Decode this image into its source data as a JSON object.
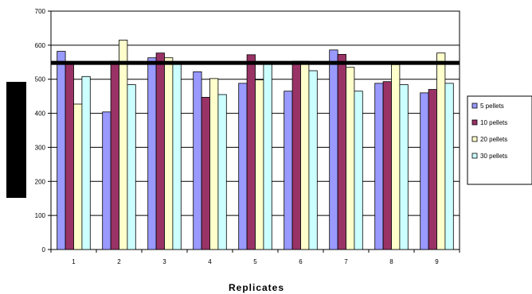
{
  "chart_data": {
    "type": "bar",
    "xlabel": "Replicates",
    "ylabel": "",
    "ylim": [
      0,
      700
    ],
    "yticks": [
      0,
      100,
      200,
      300,
      400,
      500,
      600,
      700
    ],
    "categories": [
      "1",
      "2",
      "3",
      "4",
      "5",
      "6",
      "7",
      "8",
      "9"
    ],
    "reference_line": 548,
    "grid": "horizontal",
    "legend_position": "right",
    "series": [
      {
        "name": "5 pellets",
        "color": "#9999ff",
        "values": [
          582,
          404,
          563,
          522,
          488,
          465,
          586,
          488,
          460
        ]
      },
      {
        "name": "10 pellets",
        "color": "#993366",
        "values": [
          552,
          553,
          577,
          447,
          572,
          553,
          573,
          493,
          470
        ]
      },
      {
        "name": "20 pellets",
        "color": "#ffffcc",
        "values": [
          427,
          615,
          563,
          502,
          498,
          553,
          535,
          543,
          577
        ]
      },
      {
        "name": "30 pellets",
        "color": "#ccffff",
        "values": [
          508,
          484,
          545,
          455,
          545,
          525,
          465,
          484,
          488
        ]
      }
    ]
  }
}
